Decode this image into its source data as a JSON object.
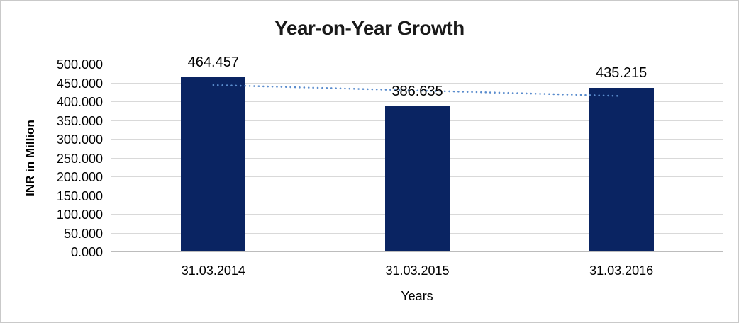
{
  "chart_data": {
    "type": "bar",
    "title": "Year-on-Year Growth",
    "xlabel": "Years",
    "ylabel": "INR in Million",
    "categories": [
      "31.03.2014",
      "31.03.2015",
      "31.03.2016"
    ],
    "values": [
      464.457,
      386.635,
      435.215
    ],
    "value_labels": [
      "464.457",
      "386.635",
      "435.215"
    ],
    "ylim": [
      0,
      500
    ],
    "ytick_step": 50,
    "ytick_labels": [
      "500.000",
      "450.000",
      "400.000",
      "350.000",
      "300.000",
      "250.000",
      "200.000",
      "150.000",
      "100.000",
      "50.000",
      "0.000"
    ],
    "grid": true,
    "legend": "none",
    "trendline": {
      "type": "linear",
      "style": "dotted",
      "color": "#5a8ccd"
    },
    "colors": {
      "bar": "#0a2462",
      "gridline": "#d9d9d9",
      "axis_line": "#bcbcbc",
      "text": "#000000",
      "title": "#1a1a1a",
      "frame_border": "#c9c9c9",
      "background": "#ffffff"
    }
  }
}
